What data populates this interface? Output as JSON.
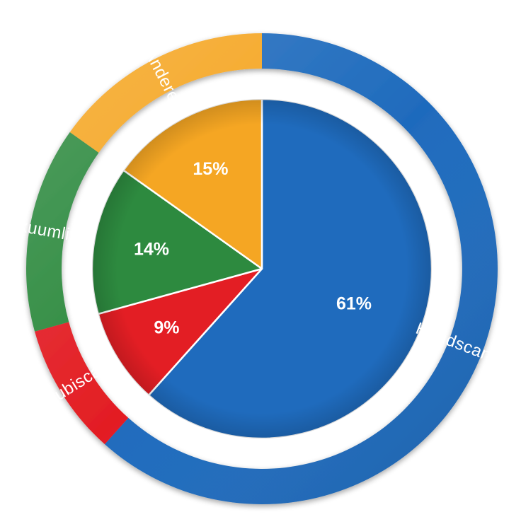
{
  "chart_data": {
    "type": "pie",
    "style": "pie with outer ring of category labels",
    "categories": [
      "Handscanner",
      "Cubiscan",
      "Vakuumlifter",
      "Andere"
    ],
    "values": [
      61,
      9,
      14,
      15
    ],
    "value_labels": [
      "61%",
      "9%",
      "14%",
      "15%"
    ],
    "unit": "%",
    "start": "12 o'clock",
    "direction": "clockwise",
    "legend": "none",
    "colors": [
      "#1f6bbd",
      "#e31e24",
      "#2d8a3f",
      "#f5a623"
    ]
  }
}
